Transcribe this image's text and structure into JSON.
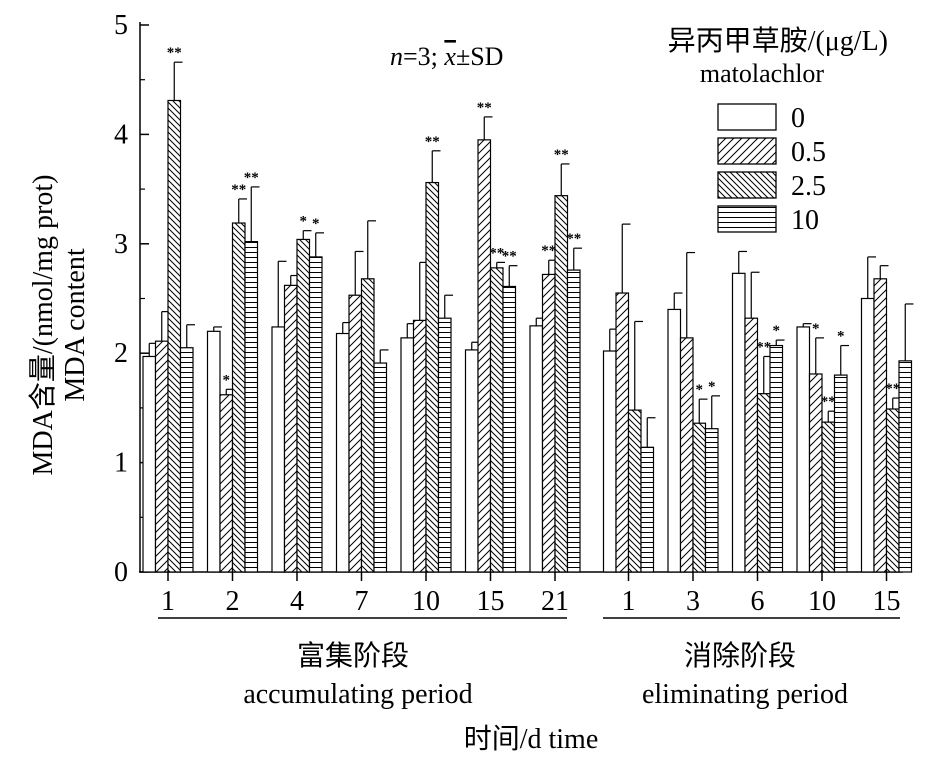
{
  "chart_data": {
    "type": "bar",
    "annotation": {
      "n_text": "n",
      "eq_text": "=3; ",
      "xbar_text": "x",
      "sd_text": "±SD"
    },
    "ylabel_cn": "MDA含量/(nmol/mg prot)",
    "ylabel_en": "MDA content",
    "xlabel": "时间/d time",
    "ylim": [
      0,
      5
    ],
    "yticks": [
      "0",
      "1",
      "2",
      "3",
      "4",
      "5"
    ],
    "legend": {
      "title_cn": "异丙甲草胺/(μg/L)",
      "title_en": "matolachlor",
      "placement": "top-right",
      "entries": [
        "0",
        "0.5",
        "2.5",
        "10"
      ]
    },
    "groups": [
      {
        "cn": "富集阶段",
        "en": "accumulating period"
      },
      {
        "cn": "消除阶段",
        "en": "eliminating period"
      }
    ],
    "categories": [
      "1",
      "2",
      "4",
      "7",
      "10",
      "15",
      "21",
      "1",
      "3",
      "6",
      "10",
      "15"
    ],
    "category_group": [
      0,
      0,
      0,
      0,
      0,
      0,
      0,
      1,
      1,
      1,
      1,
      1
    ],
    "series": [
      {
        "name": "0",
        "values": [
          1.97,
          2.2,
          2.24,
          2.18,
          2.14,
          2.03,
          2.25,
          2.02,
          2.4,
          2.73,
          2.24,
          2.5
        ],
        "errors": [
          0.12,
          0.04,
          0.6,
          0.1,
          0.13,
          0.07,
          0.07,
          0.2,
          0.15,
          0.2,
          0.03,
          0.38
        ],
        "sig": [
          "",
          "",
          "",
          "",
          "",
          "",
          "",
          "",
          "",
          "",
          "",
          ""
        ]
      },
      {
        "name": "0.5",
        "values": [
          2.11,
          1.62,
          2.62,
          2.53,
          2.3,
          3.95,
          2.72,
          2.55,
          2.14,
          2.32,
          1.81,
          2.68
        ],
        "errors": [
          0.27,
          0.05,
          0.09,
          0.4,
          0.53,
          0.21,
          0.13,
          0.63,
          0.78,
          0.42,
          0.33,
          0.12
        ],
        "sig": [
          "",
          "*",
          "",
          "",
          "",
          "**",
          "**",
          "",
          "",
          "",
          "*",
          ""
        ]
      },
      {
        "name": "2.5",
        "values": [
          4.31,
          3.19,
          3.04,
          2.68,
          3.56,
          2.78,
          3.44,
          1.48,
          1.36,
          1.63,
          1.37,
          1.49
        ],
        "errors": [
          0.35,
          0.22,
          0.08,
          0.53,
          0.29,
          0.05,
          0.29,
          0.81,
          0.22,
          0.34,
          0.1,
          0.1
        ],
        "sig": [
          "**",
          "**",
          "*",
          "",
          "**",
          "**",
          "**",
          "",
          "*",
          "**",
          "**",
          "**"
        ]
      },
      {
        "name": "10",
        "values": [
          2.05,
          3.02,
          2.88,
          1.91,
          2.32,
          2.61,
          2.76,
          1.14,
          1.31,
          2.07,
          1.8,
          1.93
        ],
        "errors": [
          0.21,
          0.5,
          0.22,
          0.12,
          0.21,
          0.19,
          0.2,
          0.27,
          0.3,
          0.05,
          0.27,
          0.52
        ],
        "sig": [
          "",
          "**",
          "*",
          "",
          "",
          "**",
          "**",
          "",
          "*",
          "*",
          "*",
          ""
        ]
      }
    ]
  }
}
